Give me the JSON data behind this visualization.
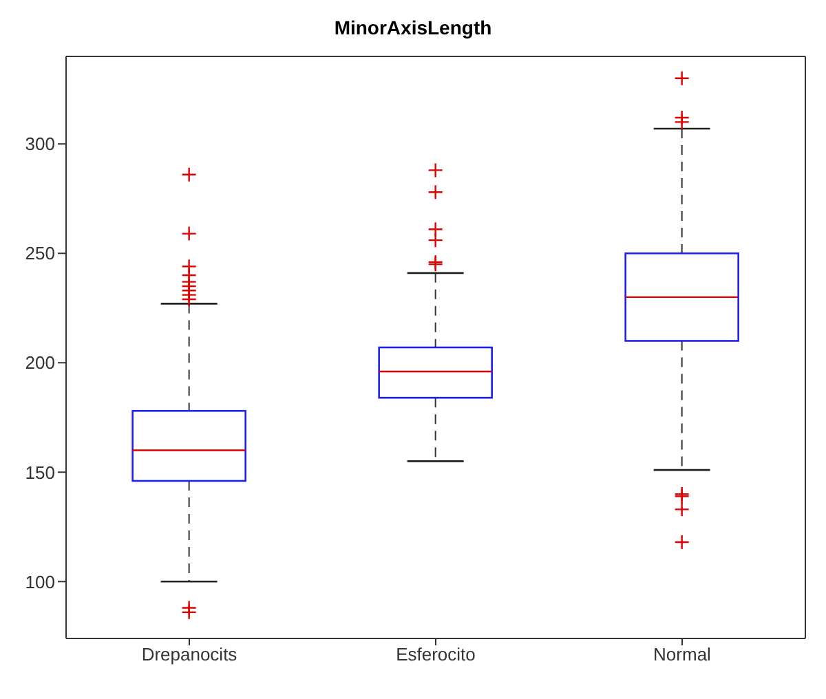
{
  "chart_data": {
    "type": "box",
    "title": "MinorAxisLength",
    "categories": [
      "Drepanocits",
      "Esferocito",
      "Normal"
    ],
    "color": "#2020ee",
    "marker": "cross",
    "ylim": [
      74,
      340
    ],
    "yticks": [
      100,
      150,
      200,
      250,
      300
    ],
    "grid": false,
    "boxes": [
      {
        "low": 100,
        "q1": 146,
        "median": 160,
        "q3": 178,
        "high": 227,
        "outliers": [
          286,
          259,
          244,
          240,
          237,
          235,
          233,
          231,
          229,
          88,
          86
        ]
      },
      {
        "low": 155,
        "q1": 184,
        "median": 196,
        "q3": 207,
        "high": 241,
        "outliers": [
          288,
          278,
          261,
          256,
          246,
          245
        ]
      },
      {
        "low": 151,
        "q1": 210,
        "median": 230,
        "q3": 250,
        "high": 307,
        "outliers": [
          330,
          312,
          310,
          140,
          139,
          133,
          118
        ]
      }
    ]
  }
}
